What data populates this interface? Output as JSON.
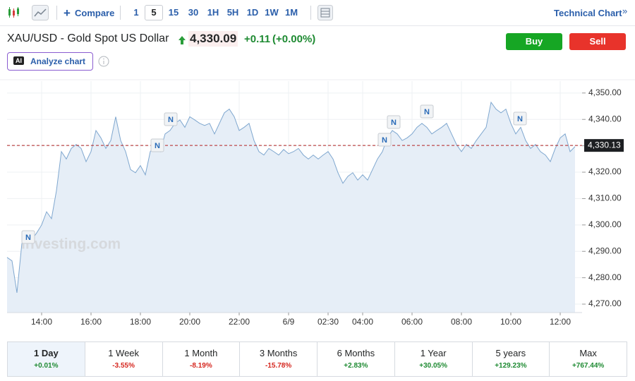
{
  "toolbar": {
    "compare": "Compare",
    "intervals": [
      "1",
      "5",
      "15",
      "30",
      "1H",
      "5H",
      "1D",
      "1W",
      "1M"
    ],
    "technical_chart": "Technical Chart"
  },
  "header": {
    "symbol": "XAU/USD - Gold Spot US Dollar",
    "price": "4,330.09",
    "change": "+0.11",
    "change_pct": "(+0.00%)",
    "buy": "Buy",
    "sell": "Sell",
    "ai_badge": "AI",
    "analyze": "Analyze chart"
  },
  "chart_data": {
    "type": "area",
    "color": "#7fa7cf",
    "fill": "#e6eef7",
    "grid": true,
    "watermark": "Investing.com",
    "news_markers": [
      "N",
      "N",
      "N",
      "N",
      "N",
      "N",
      "N"
    ],
    "last_price": {
      "value": 4330.13,
      "label": "4,330.13"
    },
    "ylim": [
      4266.8,
      4354.5
    ],
    "yticks": [
      {
        "value": 4270,
        "label": "4,270.00"
      },
      {
        "value": 4280,
        "label": "4,280.00"
      },
      {
        "value": 4290,
        "label": "4,290.00"
      },
      {
        "value": 4300,
        "label": "4,300.00"
      },
      {
        "value": 4310,
        "label": "4,310.00"
      },
      {
        "value": 4320,
        "label": "4,320.00"
      },
      {
        "value": 4330,
        "label": "4,330.00"
      },
      {
        "value": 4340,
        "label": "4,340.00"
      },
      {
        "value": 4350,
        "label": "4,350.00"
      }
    ],
    "categories": [
      null,
      null,
      null,
      null,
      null,
      null,
      null,
      "14:00",
      null,
      null,
      null,
      null,
      null,
      null,
      null,
      null,
      null,
      "16:00",
      null,
      null,
      null,
      null,
      null,
      null,
      null,
      null,
      null,
      "18:00",
      null,
      null,
      null,
      null,
      null,
      null,
      null,
      null,
      null,
      "20:00",
      null,
      null,
      null,
      null,
      null,
      null,
      null,
      null,
      null,
      "22:00",
      null,
      null,
      null,
      null,
      null,
      null,
      null,
      null,
      null,
      "6/9",
      null,
      null,
      null,
      null,
      null,
      null,
      null,
      "02:30",
      null,
      null,
      null,
      null,
      null,
      null,
      "04:00",
      null,
      null,
      null,
      null,
      null,
      null,
      null,
      null,
      null,
      "06:00",
      null,
      null,
      null,
      null,
      null,
      null,
      null,
      null,
      null,
      "08:00",
      null,
      null,
      null,
      null,
      null,
      null,
      null,
      null,
      null,
      "10:00",
      null,
      null,
      null,
      null,
      null,
      null,
      null,
      null,
      null,
      "12:00",
      null,
      null,
      null
    ],
    "values": [
      4287.7,
      4286.4,
      4274.3,
      4293,
      4295.7,
      4294.4,
      4297,
      4300,
      4305,
      4302.4,
      4313,
      4327.8,
      4325,
      4329,
      4330.5,
      4329,
      4324,
      4327.8,
      4335.8,
      4333,
      4329,
      4332,
      4341,
      4332,
      4327.8,
      4321,
      4319.8,
      4322.5,
      4319,
      4327.8,
      4330.5,
      4327.8,
      4334.5,
      4335.8,
      4338.5,
      4339.8,
      4337,
      4341,
      4339.8,
      4338.5,
      4337.7,
      4338.5,
      4334.5,
      4338.5,
      4342.5,
      4343.9,
      4341,
      4335.8,
      4337,
      4338.5,
      4332,
      4327.8,
      4326.5,
      4329,
      4327.8,
      4326.5,
      4328.6,
      4327,
      4327.8,
      4329,
      4326.5,
      4325,
      4326.5,
      4325,
      4326.5,
      4327.8,
      4325,
      4319.8,
      4315.8,
      4318.4,
      4319.8,
      4317,
      4319,
      4317,
      4321,
      4325,
      4327.8,
      4333,
      4335.8,
      4334.5,
      4332,
      4333,
      4334.5,
      4337,
      4338.5,
      4337,
      4334.5,
      4335.8,
      4337,
      4338.5,
      4334.5,
      4330.5,
      4327.8,
      4330.5,
      4329,
      4332,
      4334.5,
      4337,
      4346.5,
      4343.9,
      4342.5,
      4343.9,
      4338.5,
      4334.5,
      4337,
      4332,
      4329,
      4330.5,
      4327.8,
      4326.5,
      4324,
      4329,
      4333,
      4334.5,
      4327.8,
      4329.7
    ]
  },
  "periods": [
    {
      "label": "1 Day",
      "change": "+0.01%"
    },
    {
      "label": "1 Week",
      "change": "-3.55%"
    },
    {
      "label": "1 Month",
      "change": "-8.19%"
    },
    {
      "label": "3 Months",
      "change": "-15.78%"
    },
    {
      "label": "6 Months",
      "change": "+2.83%"
    },
    {
      "label": "1 Year",
      "change": "+30.05%"
    },
    {
      "label": "5 years",
      "change": "+129.23%"
    },
    {
      "label": "Max",
      "change": "+767.44%"
    }
  ]
}
